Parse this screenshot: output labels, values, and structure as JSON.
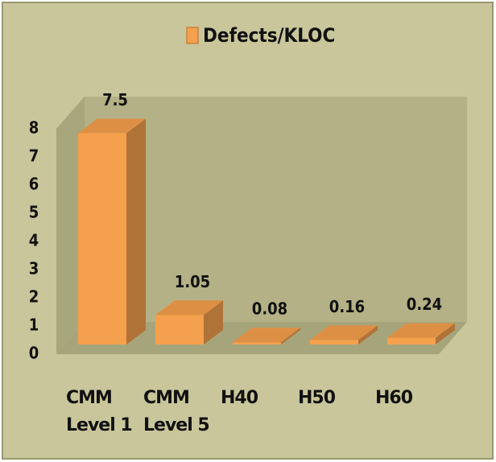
{
  "chart_data": {
    "type": "bar3d",
    "legend": "Defects/KLOC",
    "categories": [
      "CMM Level 1",
      "CMM Level 5",
      "H40",
      "H50",
      "H60"
    ],
    "values": [
      7.5,
      1.05,
      0.08,
      0.16,
      0.24
    ],
    "color": "#f5a04c",
    "ylim": [
      0,
      8
    ],
    "yticks": [
      0,
      1,
      2,
      3,
      4,
      5,
      6,
      7,
      8
    ]
  }
}
